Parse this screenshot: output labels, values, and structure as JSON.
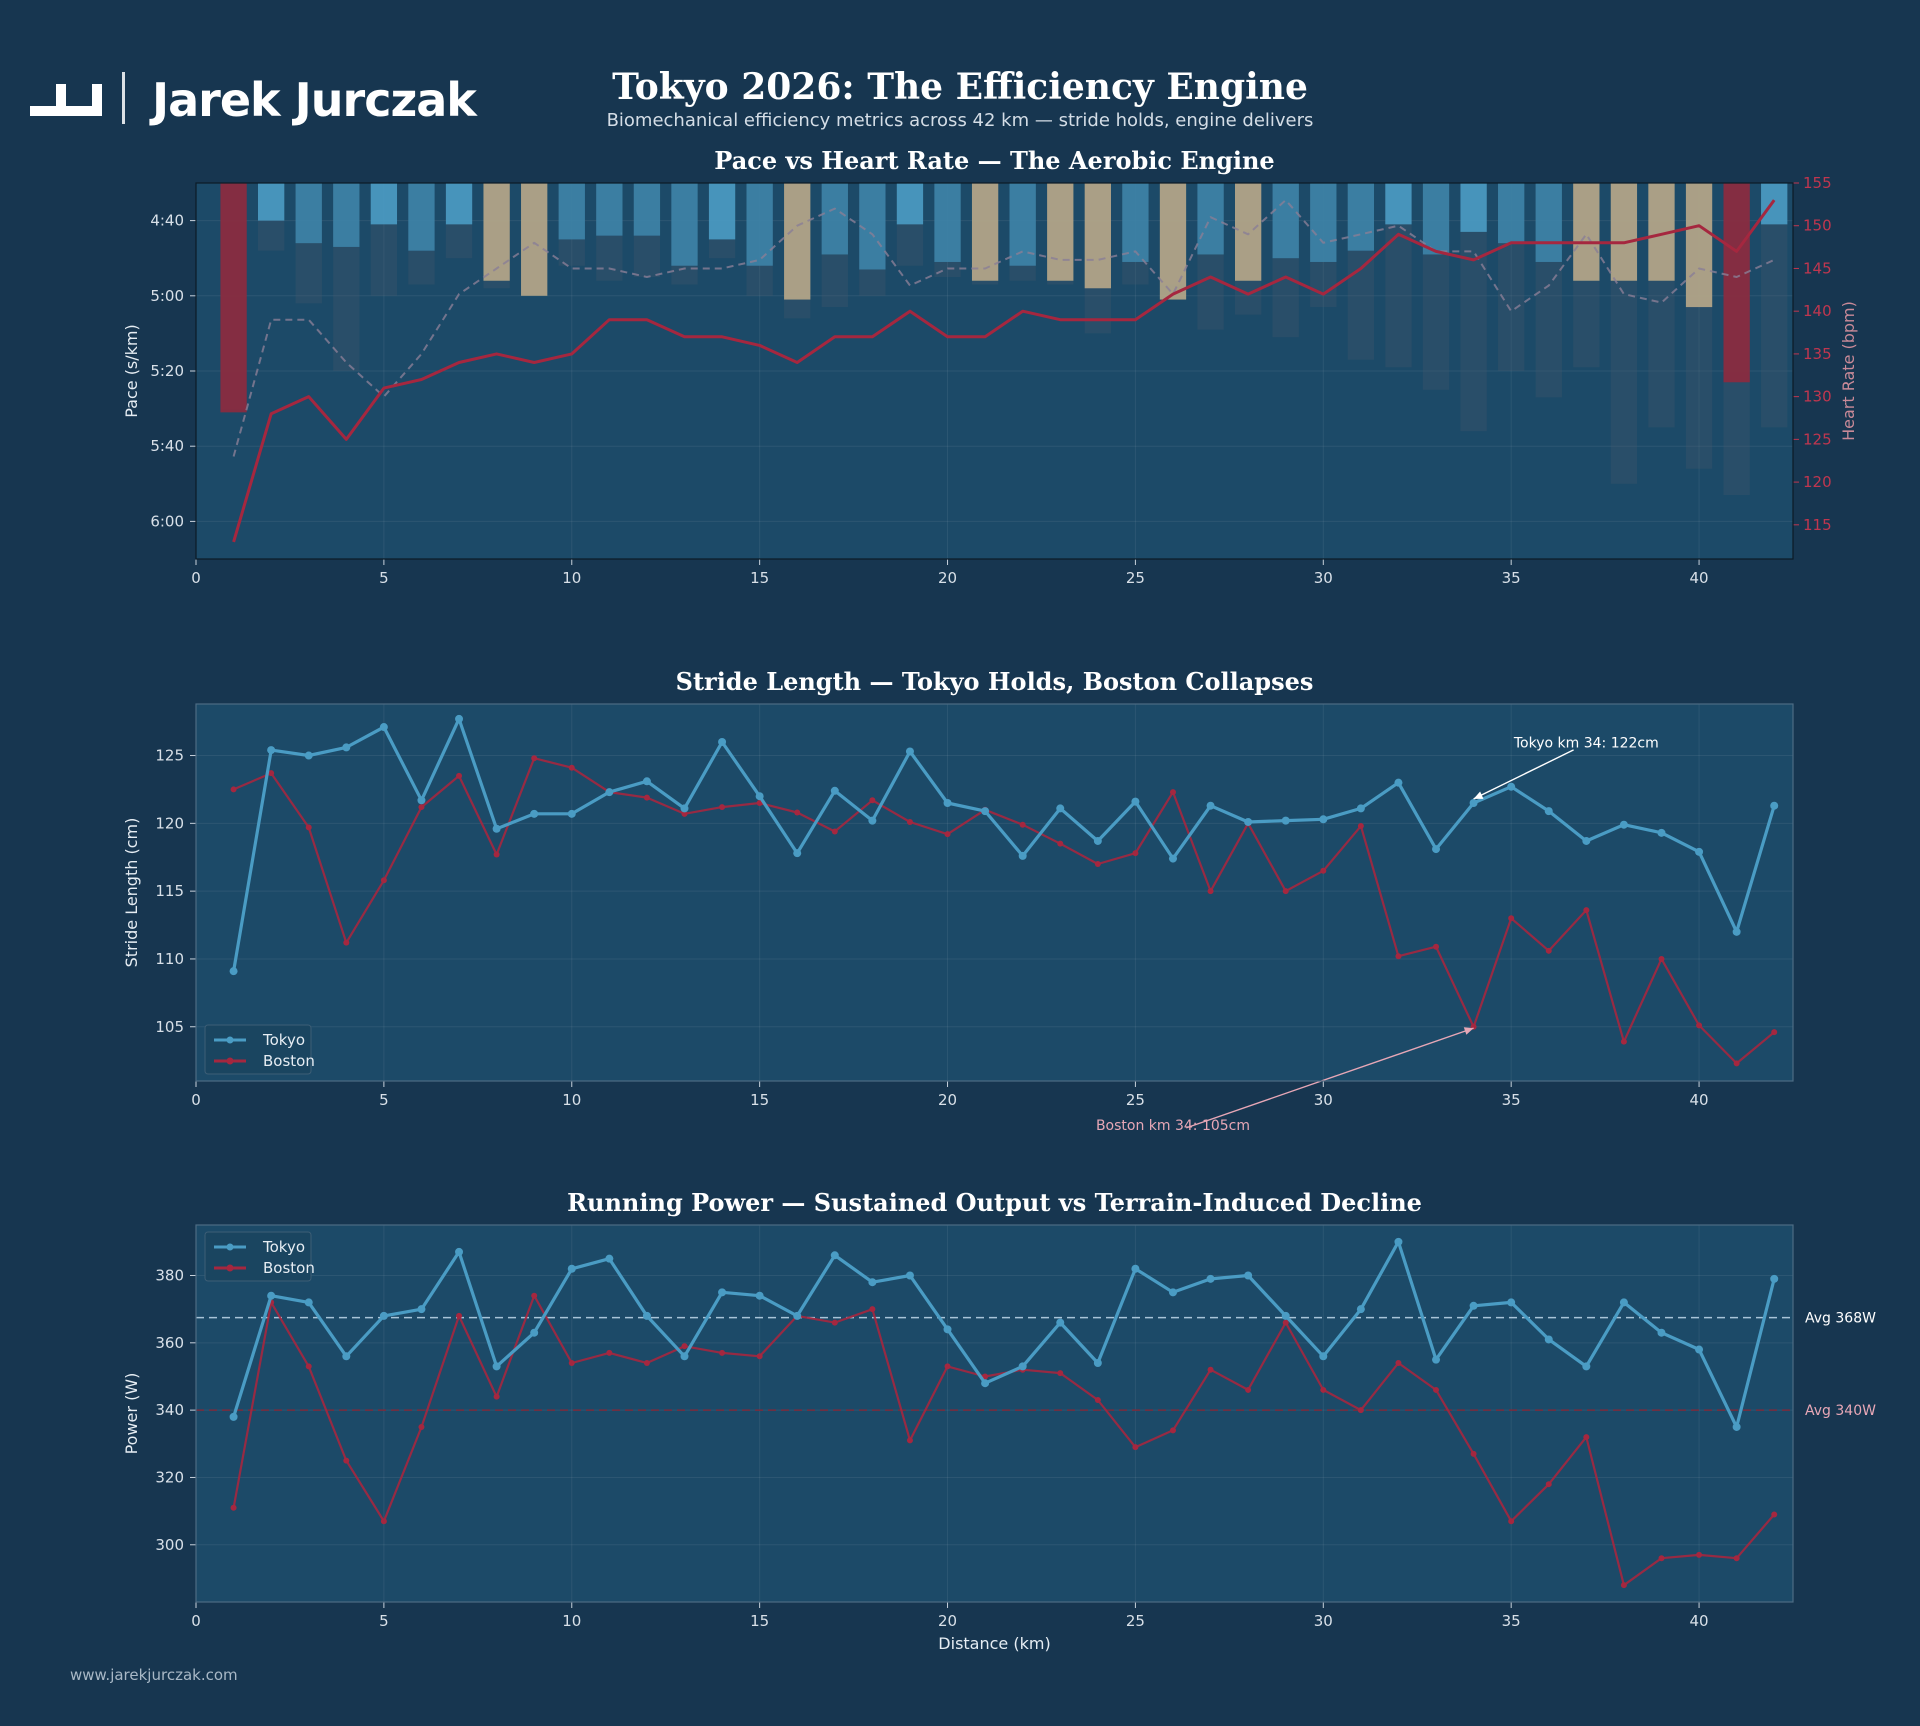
{
  "brand": {
    "name": "Jarek Jurczak",
    "url": "www.jarekjurczak.com"
  },
  "title": "Tokyo 2026: The Efficiency Engine",
  "subtitle": "Biomechanical efficiency metrics across 42 km — stride holds, engine delivers",
  "colors": {
    "background": "#173650",
    "plot": "#1c4a68",
    "tokyo": "#4a9cc4",
    "boston": "#a5273f",
    "highlight": "#b8a88a"
  },
  "chart_data": [
    {
      "type": "bar",
      "title": "Pace vs Heart Rate — The Aerobic Engine",
      "xlabel": "",
      "ylabel": "Pace (s/km)",
      "y2label": "Heart Rate (bpm)",
      "xlim": [
        0,
        42.5
      ],
      "ylim_pace_seconds": [
        370,
        270
      ],
      "ylim_hr": [
        111,
        155
      ],
      "x_ticks": [
        0,
        5,
        10,
        15,
        20,
        25,
        30,
        35,
        40
      ],
      "y_ticks": [
        [
          "4:40",
          280
        ],
        [
          "5:00",
          300
        ],
        [
          "5:20",
          320
        ],
        [
          "5:40",
          340
        ],
        [
          "6:00",
          360
        ]
      ],
      "y2_ticks": [
        115,
        120,
        125,
        130,
        135,
        140,
        145,
        150,
        155
      ],
      "x": [
        1,
        2,
        3,
        4,
        5,
        6,
        7,
        8,
        9,
        10,
        11,
        12,
        13,
        14,
        15,
        16,
        17,
        18,
        19,
        20,
        21,
        22,
        23,
        24,
        25,
        26,
        27,
        28,
        29,
        30,
        31,
        32,
        33,
        34,
        35,
        36,
        37,
        38,
        39,
        40,
        41,
        42
      ],
      "series": [
        {
          "kind": "bar",
          "values": [
            331,
            280,
            286,
            287,
            281,
            288,
            281,
            296,
            300,
            285,
            284,
            284,
            292,
            285,
            292,
            301,
            289,
            293,
            281,
            291,
            296,
            292,
            296,
            298,
            291,
            301,
            289,
            296,
            290,
            291,
            288,
            281,
            289,
            283,
            286,
            291,
            296,
            296,
            296,
            303,
            323,
            281
          ],
          "colors": [
            "#8e2a3e",
            "#4a9cc4",
            "#3d84a8",
            "#3d84a8",
            "#4a9cc4",
            "#3d84a8",
            "#4a9cc4",
            "#b8a88a",
            "#b8a88a",
            "#3d84a8",
            "#3d84a8",
            "#3d84a8",
            "#3d84a8",
            "#4a9cc4",
            "#3d84a8",
            "#b8a88a",
            "#3d84a8",
            "#3d84a8",
            "#4a9cc4",
            "#3d84a8",
            "#b8a88a",
            "#3d84a8",
            "#b8a88a",
            "#b8a88a",
            "#3d84a8",
            "#b8a88a",
            "#3d84a8",
            "#b8a88a",
            "#3d84a8",
            "#3d84a8",
            "#3d84a8",
            "#4a9cc4",
            "#3d84a8",
            "#4a9cc4",
            "#3d84a8",
            "#3d84a8",
            "#b8a88a",
            "#b8a88a",
            "#b8a88a",
            "#b8a88a",
            "#8e2a3e",
            "#4a9cc4"
          ]
        },
        {
          "kind": "bar-ghost",
          "values": [
            330,
            288,
            302,
            320,
            300,
            297,
            290,
            298,
            300,
            292,
            296,
            295,
            297,
            290,
            300,
            306,
            303,
            300,
            292,
            295,
            297,
            296,
            297,
            310,
            297,
            297,
            309,
            305,
            311,
            303,
            317,
            319,
            325,
            336,
            320,
            327,
            319,
            350,
            335,
            346,
            353,
            335
          ]
        },
        {
          "kind": "line",
          "axis": "hr",
          "style": "solid",
          "color": "#a5273f",
          "values": [
            113,
            128,
            130,
            125,
            131,
            132,
            134,
            135,
            134,
            135,
            139,
            139,
            137,
            137,
            136,
            134,
            137,
            137,
            140,
            137,
            137,
            140,
            139,
            139,
            139,
            142,
            144,
            142,
            144,
            142,
            145,
            149,
            147,
            146,
            148,
            148,
            148,
            148,
            149,
            150,
            147,
            153
          ]
        },
        {
          "kind": "line",
          "axis": "hr",
          "style": "dashed",
          "color": "#8a7e96",
          "values": [
            123,
            139,
            139,
            134,
            130,
            135,
            142,
            145,
            148,
            145,
            145,
            144,
            145,
            145,
            146,
            150,
            152,
            149,
            143,
            145,
            145,
            147,
            146,
            146,
            147,
            142,
            151,
            149,
            153,
            148,
            149,
            150,
            147,
            147,
            140,
            143,
            149,
            142,
            141,
            145,
            144,
            146
          ]
        }
      ]
    },
    {
      "type": "line",
      "title": "Stride Length — Tokyo Holds, Boston Collapses",
      "xlabel": "",
      "ylabel": "Stride Length (cm)",
      "xlim": [
        0,
        42.5
      ],
      "ylim": [
        101,
        128.8
      ],
      "x_ticks": [
        0,
        5,
        10,
        15,
        20,
        25,
        30,
        35,
        40
      ],
      "y_ticks": [
        105,
        110,
        115,
        120,
        125
      ],
      "x": [
        1,
        2,
        3,
        4,
        5,
        6,
        7,
        8,
        9,
        10,
        11,
        12,
        13,
        14,
        15,
        16,
        17,
        18,
        19,
        20,
        21,
        22,
        23,
        24,
        25,
        26,
        27,
        28,
        29,
        30,
        31,
        32,
        33,
        34,
        35,
        36,
        37,
        38,
        39,
        40,
        41,
        42
      ],
      "legend": "bottom-left",
      "series": [
        {
          "name": "Tokyo",
          "color": "#4a9cc4",
          "values": [
            109.1,
            125.4,
            125.0,
            125.6,
            127.1,
            121.7,
            127.7,
            119.6,
            120.7,
            120.7,
            122.3,
            123.1,
            121.1,
            126.0,
            122.0,
            117.8,
            122.4,
            120.2,
            125.3,
            121.5,
            120.9,
            117.6,
            121.1,
            118.7,
            121.6,
            117.4,
            121.3,
            120.1,
            120.2,
            120.3,
            121.1,
            123.0,
            118.1,
            121.5,
            122.7,
            120.9,
            118.7,
            119.9,
            119.3,
            117.9,
            112.0,
            121.3
          ]
        },
        {
          "name": "Boston",
          "color": "#a5273f",
          "values": [
            122.5,
            123.7,
            119.7,
            111.2,
            115.8,
            121.2,
            123.5,
            117.7,
            124.8,
            124.1,
            122.3,
            121.9,
            120.7,
            121.2,
            121.5,
            120.8,
            119.4,
            121.7,
            120.1,
            119.2,
            121.0,
            119.9,
            118.5,
            117.0,
            117.8,
            122.3,
            115.0,
            120.0,
            115.0,
            116.5,
            119.8,
            110.2,
            110.9,
            105.0,
            113.0,
            110.6,
            113.6,
            103.9,
            110.0,
            105.1,
            102.3,
            104.6
          ]
        }
      ],
      "annotations": [
        {
          "text": "Tokyo km 34: 122cm",
          "point": [
            34,
            121.8
          ],
          "text_at": [
            37,
            125.6
          ],
          "color": "#ffffff"
        },
        {
          "text": "Boston km 34: 105cm",
          "point": [
            34,
            104.9
          ],
          "text_at": [
            26,
            97.4
          ],
          "color": "#e7a7b6"
        }
      ]
    },
    {
      "type": "line",
      "title": "Running Power — Sustained Output vs Terrain-Induced Decline",
      "xlabel": "Distance (km)",
      "ylabel": "Power (W)",
      "xlim": [
        0,
        42.5
      ],
      "ylim": [
        283,
        395
      ],
      "x_ticks": [
        0,
        5,
        10,
        15,
        20,
        25,
        30,
        35,
        40
      ],
      "y_ticks": [
        300,
        320,
        340,
        360,
        380
      ],
      "x": [
        1,
        2,
        3,
        4,
        5,
        6,
        7,
        8,
        9,
        10,
        11,
        12,
        13,
        14,
        15,
        16,
        17,
        18,
        19,
        20,
        21,
        22,
        23,
        24,
        25,
        26,
        27,
        28,
        29,
        30,
        31,
        32,
        33,
        34,
        35,
        36,
        37,
        38,
        39,
        40,
        41,
        42
      ],
      "legend": "top-left",
      "series": [
        {
          "name": "Tokyo",
          "color": "#4a9cc4",
          "values": [
            338,
            374,
            372,
            356,
            368,
            370,
            387,
            353,
            363,
            382,
            385,
            368,
            356,
            375,
            374,
            368,
            386,
            378,
            380,
            364,
            348,
            353,
            366,
            354,
            382,
            375,
            379,
            380,
            368,
            356,
            370,
            390,
            355,
            371,
            372,
            361,
            353,
            372,
            363,
            358,
            335,
            379
          ]
        },
        {
          "name": "Boston",
          "color": "#a5273f",
          "values": [
            311,
            372,
            353,
            325,
            307,
            335,
            368,
            344,
            374,
            354,
            357,
            354,
            359,
            357,
            356,
            368,
            366,
            370,
            331,
            353,
            350,
            352,
            351,
            343,
            329,
            334,
            352,
            346,
            366,
            346,
            340,
            354,
            346,
            327,
            307,
            318,
            332,
            288,
            296,
            297,
            296,
            309
          ]
        }
      ],
      "reference_lines": [
        {
          "label": "Avg 368W",
          "value": 367.5,
          "color": "#a8c4d8",
          "label_color": "#ffffff"
        },
        {
          "label": "Avg 340W",
          "value": 340,
          "color": "#7a2c3e",
          "label_color": "#e7a7b6"
        }
      ]
    }
  ]
}
